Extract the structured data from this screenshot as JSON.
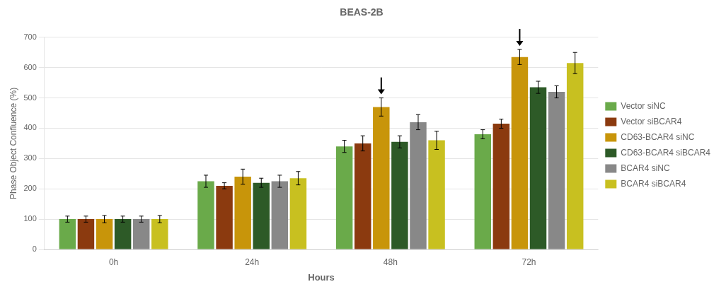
{
  "chart_data": {
    "type": "bar",
    "title": "BEAS-2B",
    "x_label": "Hours",
    "y_label": "Phase Object Confluence (%)",
    "categories": [
      "0h",
      "24h",
      "48h",
      "72h"
    ],
    "series": [
      {
        "name": "Vector siNC",
        "color": "#6aaa4a",
        "values": [
          100,
          225,
          340,
          380
        ],
        "errors": [
          10,
          20,
          20,
          15
        ]
      },
      {
        "name": "Vector siBCAR4",
        "color": "#8b3a0f",
        "values": [
          100,
          210,
          350,
          415
        ],
        "errors": [
          10,
          10,
          25,
          15
        ]
      },
      {
        "name": "CD63-BCAR4 siNC",
        "color": "#c8950a",
        "values": [
          100,
          240,
          470,
          635
        ],
        "errors": [
          12,
          25,
          30,
          25
        ]
      },
      {
        "name": "CD63-BCAR4 siBCAR4",
        "color": "#2d5a27",
        "values": [
          100,
          220,
          355,
          535
        ],
        "errors": [
          10,
          15,
          20,
          20
        ]
      },
      {
        "name": "BCAR4 siNC",
        "color": "#888888",
        "values": [
          100,
          225,
          420,
          520
        ],
        "errors": [
          10,
          20,
          25,
          20
        ]
      },
      {
        "name": "BCAR4 siBCAR4",
        "color": "#c8c020",
        "values": [
          100,
          235,
          360,
          615
        ],
        "errors": [
          12,
          22,
          30,
          35
        ]
      }
    ],
    "annotations": [
      {
        "type": "arrow",
        "series": "CD63-BCAR4 siNC",
        "category": "48h"
      },
      {
        "type": "arrow",
        "series": "CD63-BCAR4 siNC",
        "category": "72h"
      }
    ],
    "ylim": [
      0,
      700
    ],
    "yticks": [
      0,
      100,
      200,
      300,
      400,
      500,
      600,
      700
    ],
    "grid": true,
    "legend": "right"
  }
}
